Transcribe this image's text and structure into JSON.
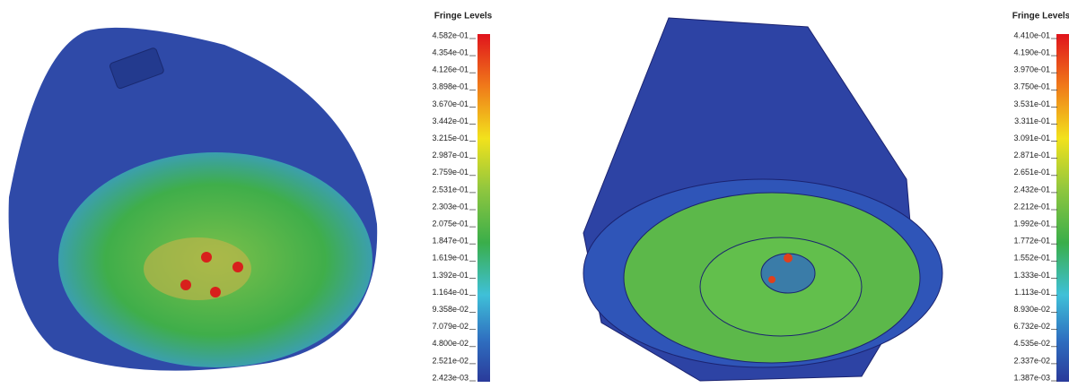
{
  "panels": [
    {
      "legend": {
        "title": "Fringe Levels",
        "levels": [
          "4.582e-01",
          "4.354e-01",
          "4.126e-01",
          "3.898e-01",
          "3.670e-01",
          "3.442e-01",
          "3.215e-01",
          "2.987e-01",
          "2.759e-01",
          "2.531e-01",
          "2.303e-01",
          "2.075e-01",
          "1.847e-01",
          "1.619e-01",
          "1.392e-01",
          "1.164e-01",
          "9.358e-02",
          "7.079e-02",
          "4.800e-02",
          "2.521e-02",
          "2.423e-03"
        ]
      }
    },
    {
      "legend": {
        "title": "Fringe Levels",
        "levels": [
          "4.410e-01",
          "4.190e-01",
          "3.970e-01",
          "3.750e-01",
          "3.531e-01",
          "3.311e-01",
          "3.091e-01",
          "2.871e-01",
          "2.651e-01",
          "2.432e-01",
          "2.212e-01",
          "1.992e-01",
          "1.772e-01",
          "1.552e-01",
          "1.333e-01",
          "1.113e-01",
          "8.930e-02",
          "6.732e-02",
          "4.535e-02",
          "2.337e-02",
          "1.387e-03"
        ]
      }
    }
  ]
}
